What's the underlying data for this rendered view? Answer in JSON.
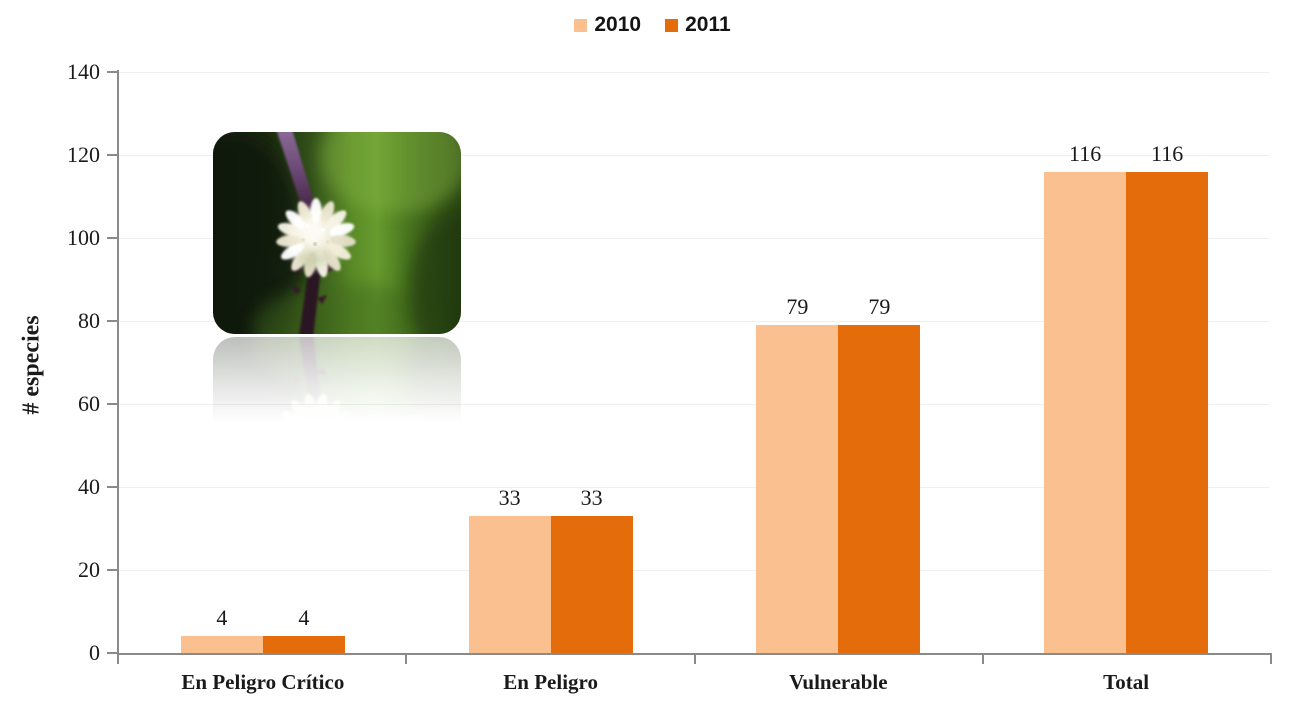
{
  "chart_data": {
    "type": "bar",
    "categories": [
      "En Peligro Crítico",
      "En Peligro",
      "Vulnerable",
      "Total"
    ],
    "series": [
      {
        "name": "2010",
        "color": "#FAC090",
        "values": [
          4,
          33,
          79,
          116
        ]
      },
      {
        "name": "2011",
        "color": "#E46C0A",
        "values": [
          4,
          33,
          79,
          116
        ]
      }
    ],
    "title": "",
    "xlabel": "",
    "ylabel": "# especies",
    "ylim": [
      0,
      140
    ],
    "ytick_step": 20,
    "yticks": [
      0,
      20,
      40,
      60,
      80,
      100,
      120,
      140
    ],
    "grid": true,
    "legend_position": "top-center",
    "data_labels_shown": true,
    "axis_color": "#8A8A8A",
    "gridline_color": "#EFEFEF",
    "text_color": "#1A1A1A",
    "background_color": "#FFFFFF"
  },
  "photo": {
    "alt": "Close-up photo of a small white globe flower on a purple stem against a blurred green background, with a faded reflection below"
  }
}
